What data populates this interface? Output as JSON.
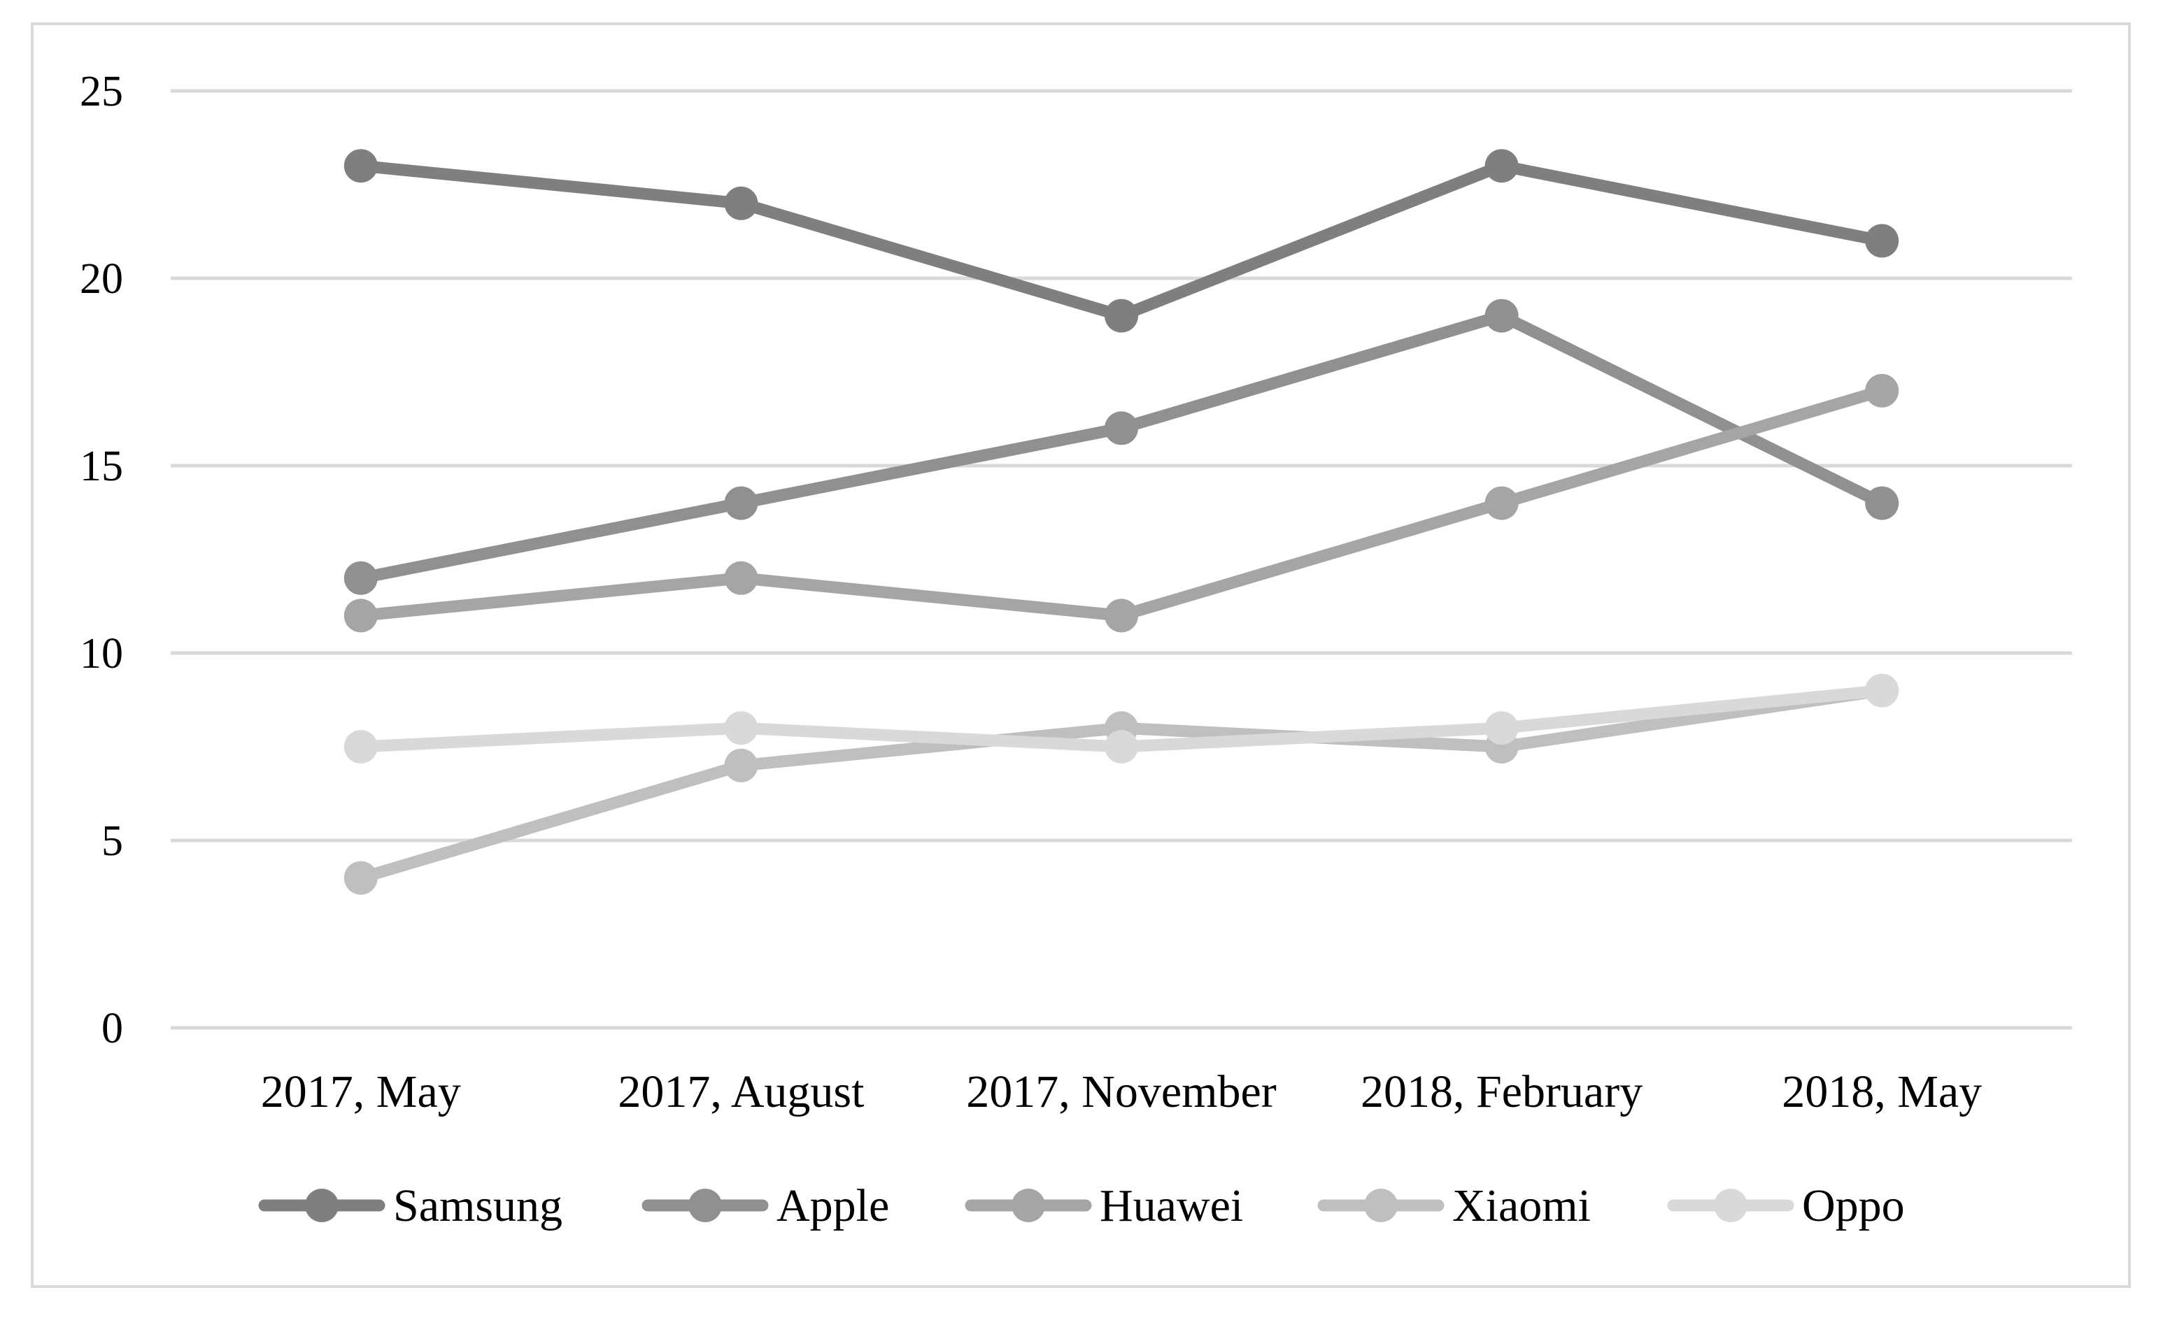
{
  "chart_data": {
    "type": "line",
    "title": "",
    "xlabel": "",
    "ylabel": "",
    "categories": [
      "2017, May",
      "2017, August",
      "2017, November",
      "2018, February",
      "2018, May"
    ],
    "ylim": [
      0,
      25
    ],
    "yticks": [
      0,
      5,
      10,
      15,
      20,
      25
    ],
    "grid": true,
    "legend": "bottom",
    "series": [
      {
        "name": "Samsung",
        "values": [
          23,
          22,
          19,
          23,
          21
        ],
        "color": "#7f7f7f"
      },
      {
        "name": "Apple",
        "values": [
          12,
          14,
          16,
          19,
          14
        ],
        "color": "#909090"
      },
      {
        "name": "Huawei",
        "values": [
          11,
          12,
          11,
          14,
          17
        ],
        "color": "#a5a5a5"
      },
      {
        "name": "Xiaomi",
        "values": [
          4,
          7,
          8,
          7.5,
          9
        ],
        "color": "#bfbfbf"
      },
      {
        "name": "Oppo",
        "values": [
          7.5,
          8,
          7.5,
          8,
          9
        ],
        "color": "#d9d9d9"
      }
    ]
  }
}
